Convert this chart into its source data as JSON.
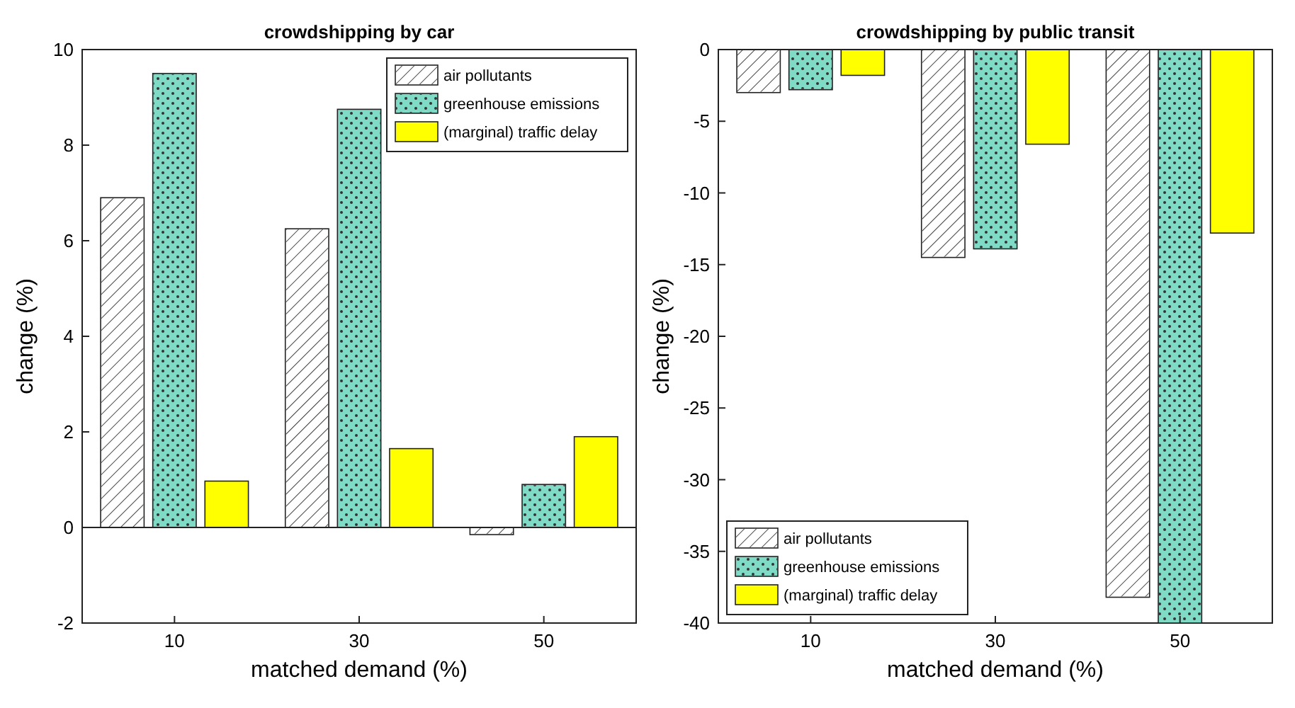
{
  "chart_data": [
    {
      "type": "bar",
      "title": "crowdshipping by car",
      "xlabel": "matched demand (%)",
      "ylabel": "change (%)",
      "categories": [
        "10",
        "30",
        "50"
      ],
      "series": [
        {
          "name": "air pollutants",
          "color": "#ffffff",
          "values": [
            6.9,
            6.25,
            -0.15
          ]
        },
        {
          "name": "greenhouse emissions",
          "color": "#7fdac6",
          "values": [
            9.5,
            8.75,
            0.9
          ]
        },
        {
          "name": "(marginal) traffic delay",
          "color": "#ffff00",
          "values": [
            0.97,
            1.65,
            1.9
          ]
        }
      ],
      "ylim": [
        -2,
        10
      ],
      "yticks": [
        -2,
        0,
        2,
        4,
        6,
        8,
        10
      ],
      "legend": "top right"
    },
    {
      "type": "bar",
      "title": "crowdshipping by public transit",
      "xlabel": "matched demand (%)",
      "ylabel": "change (%)",
      "categories": [
        "10",
        "30",
        "50"
      ],
      "series": [
        {
          "name": "air pollutants",
          "color": "#ffffff",
          "values": [
            -3,
            -14.5,
            -38.2
          ]
        },
        {
          "name": "greenhouse emissions",
          "color": "#7fdac6",
          "values": [
            -2.8,
            -13.9,
            -40
          ]
        },
        {
          "name": "(marginal) traffic delay",
          "color": "#ffff00",
          "values": [
            -1.8,
            -6.6,
            -12.8
          ]
        }
      ],
      "ylim": [
        -40,
        0
      ],
      "yticks": [
        -40,
        -35,
        -30,
        -25,
        -20,
        -15,
        -10,
        -5,
        0
      ],
      "legend": "bottom left"
    }
  ]
}
